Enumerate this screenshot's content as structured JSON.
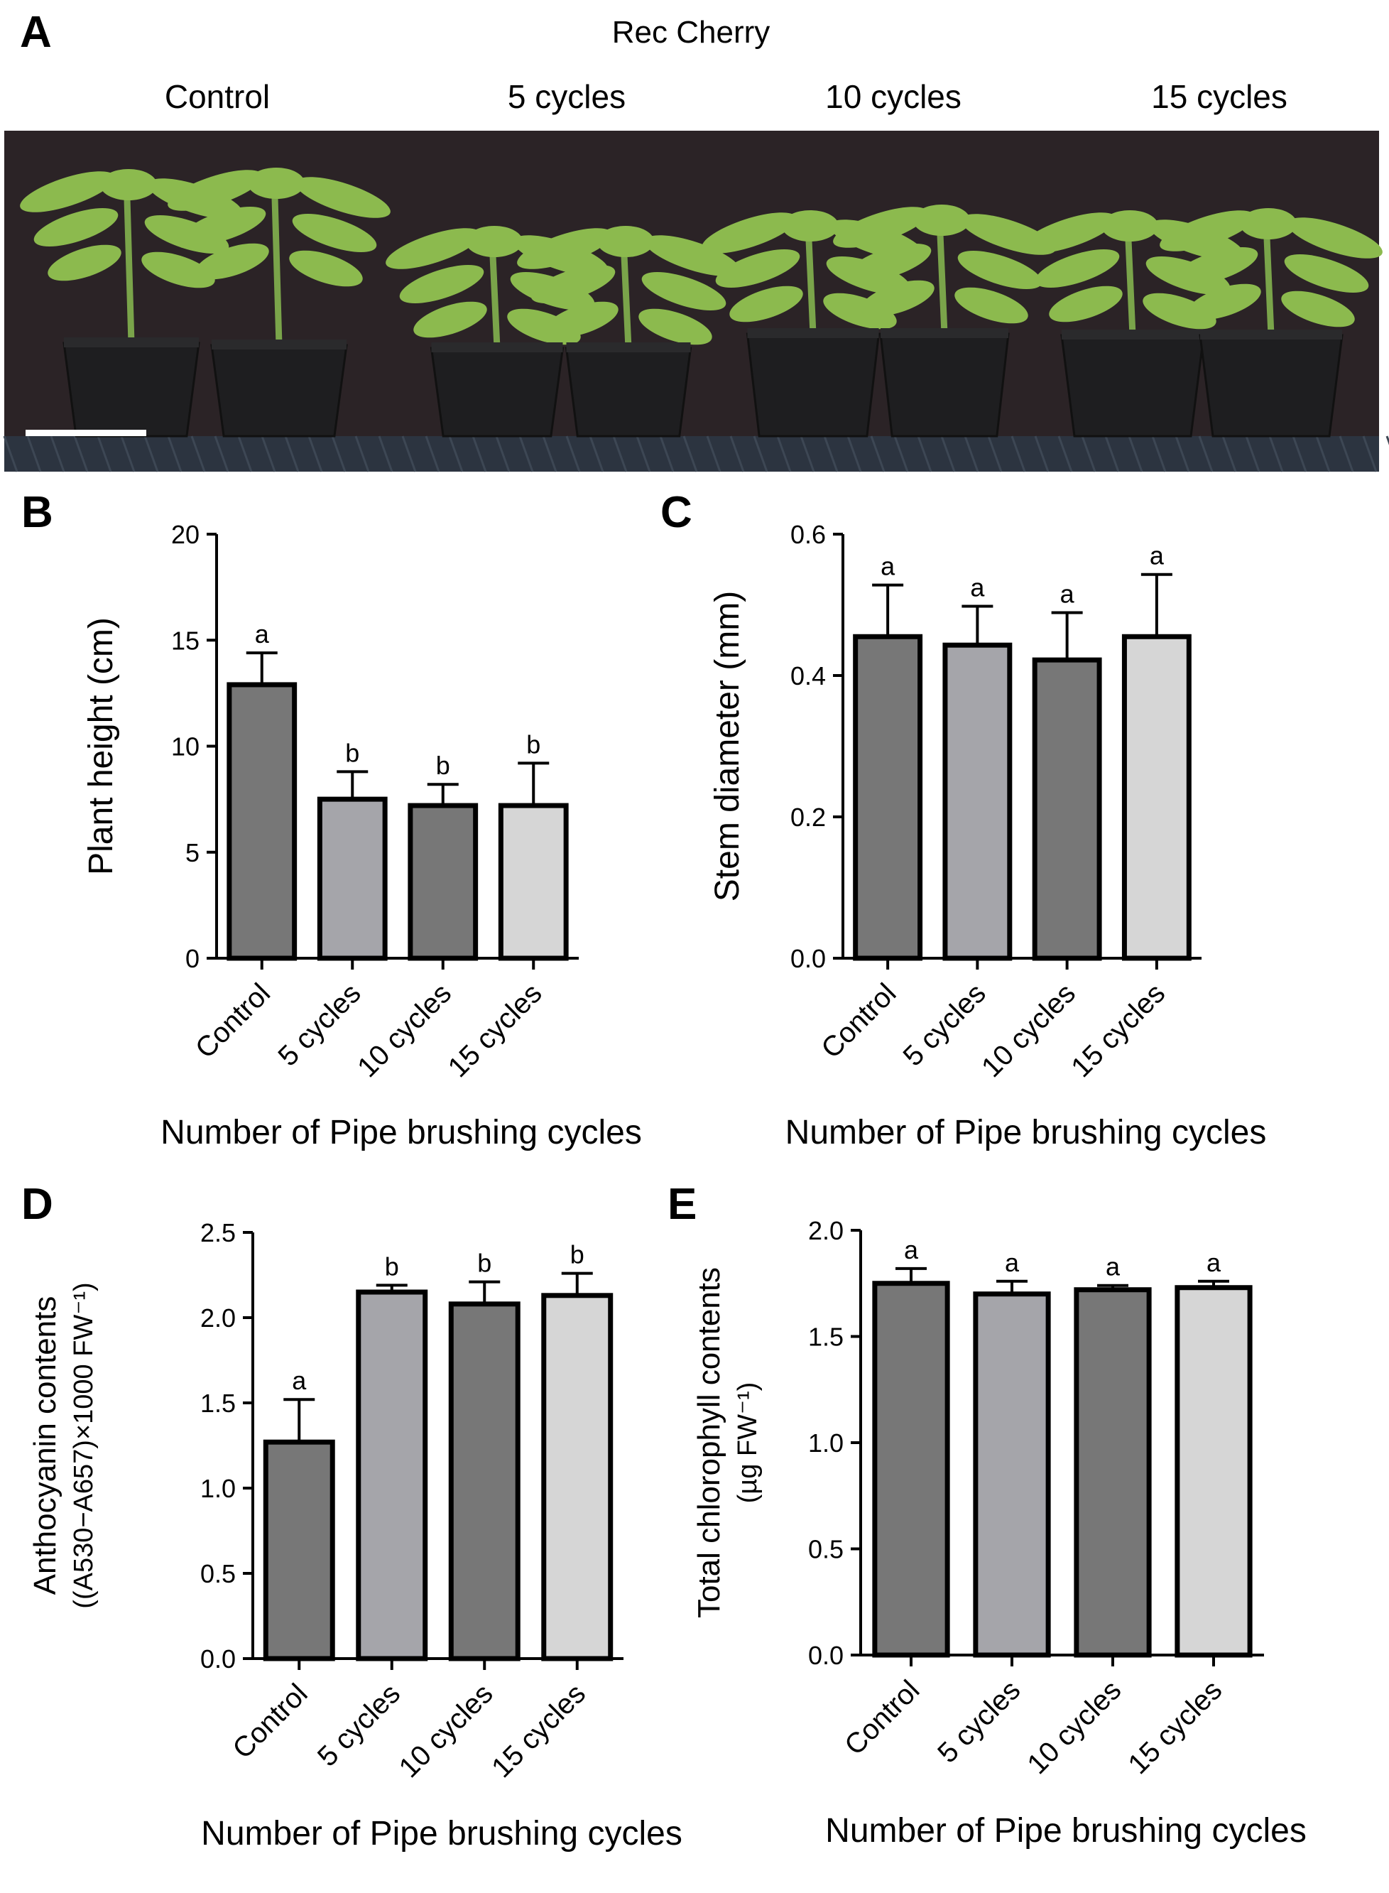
{
  "figure": {
    "photo_panel": {
      "letter": "A",
      "title": "Rec Cherry",
      "group_labels": [
        "Control",
        "5 cycles",
        "10 cycles",
        "15 cycles"
      ],
      "colors": {
        "background": "#2b2326",
        "leaf": "#8cba4e",
        "stem": "#7aa44a",
        "pot": "#1e1e20",
        "bench": "#2c3440",
        "scale_bar": "#ffffff"
      }
    }
  },
  "chart_data": [
    {
      "panel": "B",
      "type": "bar",
      "categories": [
        "Control",
        "5 cycles",
        "10 cycles",
        "15 cycles"
      ],
      "values": [
        12.9,
        7.5,
        7.2,
        7.2
      ],
      "errors": [
        1.5,
        1.3,
        1.0,
        2.0
      ],
      "significance": [
        "a",
        "b",
        "b",
        "b"
      ],
      "colors": [
        "#777777",
        "#a5a5aa",
        "#777777",
        "#d6d6d6"
      ],
      "xlabel": "Number of Pipe brushing cycles",
      "ylabel": [
        "Plant height (cm)"
      ],
      "ylim": [
        0,
        20
      ],
      "yticks": [
        0,
        5,
        10,
        15,
        20
      ],
      "ytick_labels": [
        "0",
        "5",
        "10",
        "15",
        "20"
      ]
    },
    {
      "panel": "C",
      "type": "bar",
      "categories": [
        "Control",
        "5 cycles",
        "10 cycles",
        "15 cycles"
      ],
      "values": [
        0.455,
        0.443,
        0.422,
        0.455
      ],
      "errors": [
        0.073,
        0.055,
        0.067,
        0.088
      ],
      "significance": [
        "a",
        "a",
        "a",
        "a"
      ],
      "colors": [
        "#777777",
        "#a5a5aa",
        "#777777",
        "#d6d6d6"
      ],
      "xlabel": "Number of Pipe brushing cycles",
      "ylabel": [
        "Stem diameter (mm)"
      ],
      "ylim": [
        0,
        0.6
      ],
      "yticks": [
        0,
        0.2,
        0.4,
        0.6
      ],
      "ytick_labels": [
        "0.0",
        "0.2",
        "0.4",
        "0.6"
      ]
    },
    {
      "panel": "D",
      "type": "bar",
      "categories": [
        "Control",
        "5 cycles",
        "10 cycles",
        "15 cycles"
      ],
      "values": [
        1.27,
        2.15,
        2.08,
        2.13
      ],
      "errors": [
        0.25,
        0.04,
        0.13,
        0.13
      ],
      "significance": [
        "a",
        "b",
        "b",
        "b"
      ],
      "colors": [
        "#777777",
        "#a5a5aa",
        "#777777",
        "#d6d6d6"
      ],
      "xlabel": "Number of Pipe brushing cycles",
      "ylabel": [
        "Anthocyanin contents",
        "((A530−A657)×1000 FW⁻¹)"
      ],
      "ylim": [
        0,
        2.5
      ],
      "yticks": [
        0,
        0.5,
        1,
        1.5,
        2,
        2.5
      ],
      "ytick_labels": [
        "0.0",
        "0.5",
        "1.0",
        "1.5",
        "2.0",
        "2.5"
      ]
    },
    {
      "panel": "E",
      "type": "bar",
      "categories": [
        "Control",
        "5 cycles",
        "10 cycles",
        "15 cycles"
      ],
      "values": [
        1.75,
        1.7,
        1.72,
        1.73
      ],
      "errors": [
        0.07,
        0.06,
        0.02,
        0.03
      ],
      "significance": [
        "a",
        "a",
        "a",
        "a"
      ],
      "colors": [
        "#777777",
        "#a5a5aa",
        "#777777",
        "#d6d6d6"
      ],
      "xlabel": "Number of Pipe brushing cycles",
      "ylabel": [
        "Total chlorophyll contents",
        "(µg FW⁻¹)"
      ],
      "ylim": [
        0,
        2
      ],
      "yticks": [
        0,
        0.5,
        1,
        1.5,
        2
      ],
      "ytick_labels": [
        "0.0",
        "0.5",
        "1.0",
        "1.5",
        "2.0"
      ]
    }
  ]
}
